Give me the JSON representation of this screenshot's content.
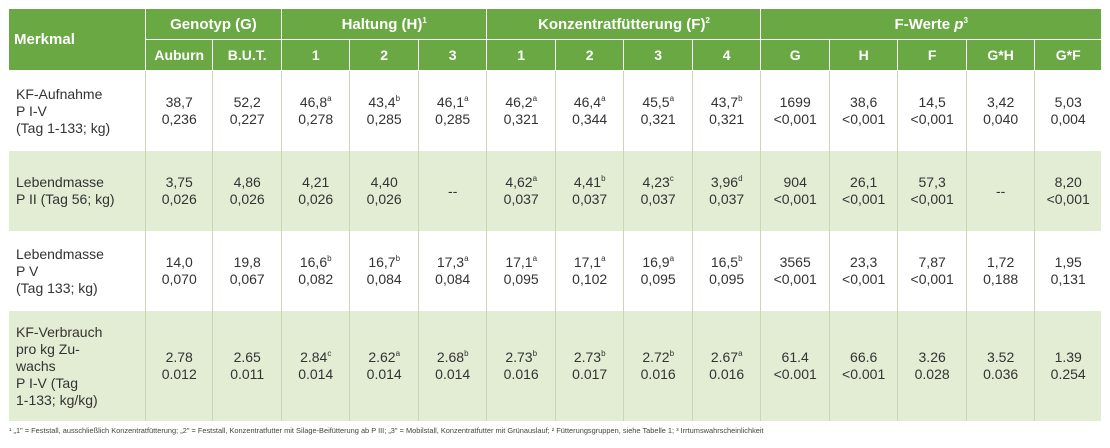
{
  "header": {
    "merkmal": "Merkmal",
    "groups": [
      {
        "label": "Genotyp (G)",
        "sup": ""
      },
      {
        "label": "Haltung (H)",
        "sup": "1"
      },
      {
        "label": "Konzentratfütterung (F)",
        "sup": "2"
      },
      {
        "label": "F-Werte ",
        "p": "p",
        "sup": "3"
      }
    ],
    "sub": [
      "Auburn",
      "B.U.T.",
      "1",
      "2",
      "3",
      "1",
      "2",
      "3",
      "4",
      "G",
      "H",
      "F",
      "G*H",
      "G*F"
    ]
  },
  "rows": [
    {
      "label": [
        "KF-Aufnahme",
        "P I-V",
        "(Tag 1-133; kg)"
      ],
      "cells": [
        {
          "v1": "38,7",
          "s": "",
          "v2": "0,236"
        },
        {
          "v1": "52,2",
          "s": "",
          "v2": "0,227"
        },
        {
          "v1": "46,8",
          "s": "a",
          "v2": "0,278"
        },
        {
          "v1": "43,4",
          "s": "b",
          "v2": "0,285"
        },
        {
          "v1": "46,1",
          "s": "a",
          "v2": "0,285"
        },
        {
          "v1": "46,2",
          "s": "a",
          "v2": "0,321"
        },
        {
          "v1": "46,4",
          "s": "a",
          "v2": "0,344"
        },
        {
          "v1": "45,5",
          "s": "a",
          "v2": "0,321"
        },
        {
          "v1": "43,7",
          "s": "b",
          "v2": "0,321"
        },
        {
          "v1": "1699",
          "s": "",
          "v2": "<0,001"
        },
        {
          "v1": "38,6",
          "s": "",
          "v2": "<0,001"
        },
        {
          "v1": "14,5",
          "s": "",
          "v2": "<0,001"
        },
        {
          "v1": "3,42",
          "s": "",
          "v2": "0,040"
        },
        {
          "v1": "5,03",
          "s": "",
          "v2": "0,004"
        }
      ]
    },
    {
      "label": [
        "Lebendmasse",
        "P II (Tag 56; kg)"
      ],
      "cells": [
        {
          "v1": "3,75",
          "s": "",
          "v2": "0,026"
        },
        {
          "v1": "4,86",
          "s": "",
          "v2": "0,026"
        },
        {
          "v1": "4,21",
          "s": "",
          "v2": "0,026"
        },
        {
          "v1": "4,40",
          "s": "",
          "v2": "0,026"
        },
        {
          "v1": "--",
          "s": "",
          "v2": ""
        },
        {
          "v1": "4,62",
          "s": "a",
          "v2": "0,037"
        },
        {
          "v1": "4,41",
          "s": "b",
          "v2": "0,037"
        },
        {
          "v1": "4,23",
          "s": "c",
          "v2": "0,037"
        },
        {
          "v1": "3,96",
          "s": "d",
          "v2": "0,037"
        },
        {
          "v1": "904",
          "s": "",
          "v2": "<0,001"
        },
        {
          "v1": "26,1",
          "s": "",
          "v2": "<0,001"
        },
        {
          "v1": "57,3",
          "s": "",
          "v2": "<0,001"
        },
        {
          "v1": "--",
          "s": "",
          "v2": ""
        },
        {
          "v1": "8,20",
          "s": "",
          "v2": "<0,001"
        }
      ]
    },
    {
      "label": [
        "Lebendmasse",
        "P V",
        "(Tag 133; kg)"
      ],
      "cells": [
        {
          "v1": "14,0",
          "s": "",
          "v2": "0,070"
        },
        {
          "v1": "19,8",
          "s": "",
          "v2": "0,067"
        },
        {
          "v1": "16,6",
          "s": "b",
          "v2": "0,082"
        },
        {
          "v1": "16,7",
          "s": "b",
          "v2": "0,084"
        },
        {
          "v1": "17,3",
          "s": "a",
          "v2": "0,084"
        },
        {
          "v1": "17,1",
          "s": "a",
          "v2": "0,095"
        },
        {
          "v1": "17,1",
          "s": "a",
          "v2": "0,102"
        },
        {
          "v1": "16,9",
          "s": "a",
          "v2": "0,095"
        },
        {
          "v1": "16,5",
          "s": "b",
          "v2": "0,095"
        },
        {
          "v1": "3565",
          "s": "",
          "v2": "<0,001"
        },
        {
          "v1": "23,3",
          "s": "",
          "v2": "<0,001"
        },
        {
          "v1": "7,87",
          "s": "",
          "v2": "<0,001"
        },
        {
          "v1": "1,72",
          "s": "",
          "v2": "0,188"
        },
        {
          "v1": "1,95",
          "s": "",
          "v2": "0,131"
        }
      ]
    },
    {
      "label": [
        "KF-Verbrauch",
        "pro kg Zu-",
        "wachs",
        "P I-V (Tag",
        "1-133; kg/kg)"
      ],
      "cells": [
        {
          "v1": "2.78",
          "s": "",
          "v2": "0.012"
        },
        {
          "v1": "2.65",
          "s": "",
          "v2": "0.011"
        },
        {
          "v1": "2.84",
          "s": "c",
          "v2": "0.014"
        },
        {
          "v1": "2.62",
          "s": "a",
          "v2": "0.014"
        },
        {
          "v1": "2.68",
          "s": "b",
          "v2": "0.014"
        },
        {
          "v1": "2.73",
          "s": "b",
          "v2": "0.016"
        },
        {
          "v1": "2.73",
          "s": "b",
          "v2": "0.017"
        },
        {
          "v1": "2.72",
          "s": "b",
          "v2": "0.016"
        },
        {
          "v1": "2.67",
          "s": "a",
          "v2": "0.016"
        },
        {
          "v1": "61.4",
          "s": "",
          "v2": "<0.001"
        },
        {
          "v1": "66.6",
          "s": "",
          "v2": "<0.001"
        },
        {
          "v1": "3.26",
          "s": "",
          "v2": "0.028"
        },
        {
          "v1": "3.52",
          "s": "",
          "v2": "0.036"
        },
        {
          "v1": "1.39",
          "s": "",
          "v2": "0.254"
        }
      ]
    }
  ],
  "footnote": "¹ „1\" = Feststall, ausschließlich Konzentratfütterung; „2\" = Feststall, Konzentratfutter mit Silage-Beifütterung ab P III; „3\" = Mobilstall, Konzentratfutter mit Grünauslauf; ² Fütterungsgruppen, siehe Tabelle 1; ³ Irrtumswahrscheinlichkeit",
  "colors": {
    "header_bg": "#6aa843",
    "row_alt_bg": "#e3edd4",
    "row_bg": "#ffffff"
  }
}
